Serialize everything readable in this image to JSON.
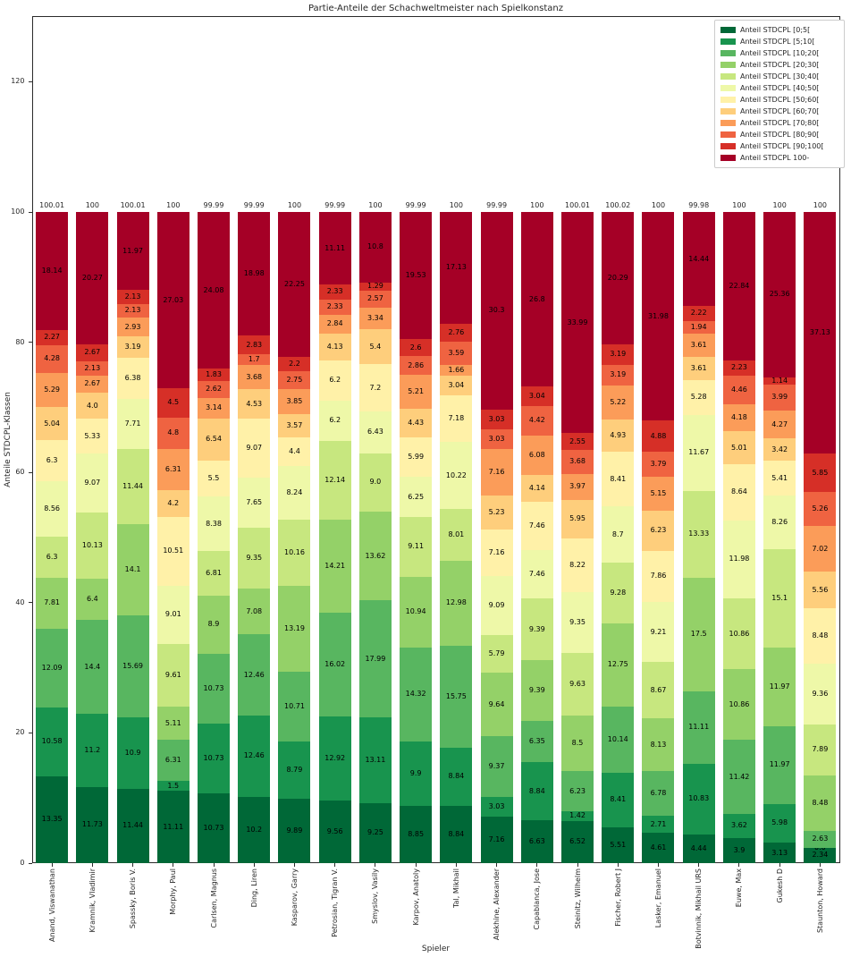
{
  "title": "Partie-Anteile der Schachweltmeister nach Spielkonstanz",
  "axes": {
    "xlabel": "Spieler",
    "ylabel": "Anteile STDCPL-Klassen",
    "ytick_labels": [
      "0",
      "20",
      "40",
      "60",
      "80",
      "100",
      "120"
    ]
  },
  "chart_data": {
    "type": "bar",
    "stacked": true,
    "grid": false,
    "legend_position": "upper right",
    "title": "Partie-Anteile der Schachweltmeister nach Spielkonstanz",
    "xlabel": "Spieler",
    "ylabel": "Anteile STDCPL-Klassen",
    "ylim": [
      0,
      130
    ],
    "yticks": [
      0,
      20,
      40,
      60,
      80,
      100,
      120
    ],
    "categories": [
      "Anand, Viswanathan",
      "Kramnik, Vladimir",
      "Spassky, Boris V.",
      "Morphy, Paul",
      "Carlsen, Magnus",
      "Ding, Liren",
      "Kasparov, Garry",
      "Petrosian, Tigran V.",
      "Smyslov, Vasily",
      "Karpov, Anatoly",
      "Tal, Mikhail",
      "Alekhine, Alexander",
      "Capablanca, Jose",
      "Steinitz, Wilhelm",
      "Fischer, Robert J",
      "Lasker, Emanuel",
      "Botvinnik, Mikhail URS",
      "Euwe, Max",
      "Gukesh D",
      "Staunton, Howard"
    ],
    "bar_totals": [
      "100.01",
      "100",
      "100.01",
      "100",
      "99.99",
      "99.99",
      "100",
      "99.99",
      "100",
      "99.99",
      "100",
      "99.99",
      "100",
      "100.01",
      "100.02",
      "100",
      "99.98",
      "100",
      "100",
      "100"
    ],
    "series": [
      {
        "name": "Anteil STDCPL [0;5[",
        "color": "#006837",
        "values": [
          "13.35",
          "11.73",
          "11.44",
          "11.11",
          "10.73",
          "10.2",
          "9.89",
          "9.56",
          "9.25",
          "8.85",
          "8.84",
          "7.16",
          "6.63",
          "6.52",
          "5.51",
          "4.61",
          "4.44",
          "3.9",
          "3.13",
          "2.34"
        ]
      },
      {
        "name": "Anteil STDCPL [5;10[",
        "color": "#18944e",
        "values": [
          "10.58",
          "11.2",
          "10.9",
          "1.5",
          "10.73",
          "12.46",
          "8.79",
          "12.92",
          "13.11",
          "9.9",
          "8.84",
          "3.03",
          "8.84",
          "1.42",
          "8.41",
          "2.71",
          "10.83",
          "3.62",
          "5.98",
          "0.0"
        ]
      },
      {
        "name": "Anteil STDCPL [10;20[",
        "color": "#58b660",
        "values": [
          "12.09",
          "14.4",
          "15.69",
          "6.31",
          "10.73",
          "12.46",
          "10.71",
          "16.02",
          "17.99",
          "14.32",
          "15.75",
          "9.37",
          "6.35",
          "6.23",
          "10.14",
          "6.78",
          "11.11",
          "11.42",
          "11.97",
          "2.63"
        ]
      },
      {
        "name": "Anteil STDCPL [20;30[",
        "color": "#94d168",
        "values": [
          "7.81",
          "6.4",
          "14.1",
          "5.11",
          "8.9",
          "7.08",
          "13.19",
          "14.21",
          "13.62",
          "10.94",
          "12.98",
          "9.64",
          "9.39",
          "8.5",
          "12.75",
          "8.13",
          "17.5",
          "10.86",
          "11.97",
          "8.48"
        ]
      },
      {
        "name": "Anteil STDCPL [30;40[",
        "color": "#c7e77f",
        "values": [
          "6.3",
          "10.13",
          "11.44",
          "9.61",
          "6.81",
          "9.35",
          "10.16",
          "12.14",
          "9.0",
          "9.11",
          "8.01",
          "5.79",
          "9.39",
          "9.63",
          "9.28",
          "8.67",
          "13.33",
          "10.86",
          "15.1",
          "7.89"
        ]
      },
      {
        "name": "Anteil STDCPL [40;50[",
        "color": "#eef8a8",
        "values": [
          "8.56",
          "9.07",
          "7.71",
          "9.01",
          "8.38",
          "7.65",
          "8.24",
          "6.2",
          "6.43",
          "6.25",
          "10.22",
          "9.09",
          "7.46",
          "9.35",
          "8.7",
          "9.21",
          "11.67",
          "11.98",
          "8.26",
          "9.36"
        ]
      },
      {
        "name": "Anteil STDCPL [50;60[",
        "color": "#fff1a8",
        "values": [
          "6.3",
          "5.33",
          "6.38",
          "10.51",
          "5.5",
          "9.07",
          "4.4",
          "6.2",
          "7.2",
          "5.99",
          "7.18",
          "7.16",
          "7.46",
          "8.22",
          "8.41",
          "7.86",
          "5.28",
          "8.64",
          "5.41",
          "8.48"
        ]
      },
      {
        "name": "Anteil STDCPL [60;70[",
        "color": "#fece7c",
        "values": [
          "5.04",
          "4.0",
          "3.19",
          "4.2",
          "6.54",
          "4.53",
          "3.57",
          "4.13",
          "5.4",
          "4.43",
          "3.04",
          "5.23",
          "4.14",
          "5.95",
          "4.93",
          "6.23",
          "3.61",
          "5.01",
          "3.42",
          "5.56"
        ]
      },
      {
        "name": "Anteil STDCPL [70;80[",
        "color": "#fb9c59",
        "values": [
          "5.29",
          "2.67",
          "2.93",
          "6.31",
          "3.14",
          "3.68",
          "3.85",
          "2.84",
          "3.34",
          "5.21",
          "1.66",
          "7.16",
          "6.08",
          "3.97",
          "5.22",
          "5.15",
          "3.61",
          "4.18",
          "4.27",
          "7.02"
        ]
      },
      {
        "name": "Anteil STDCPL [80;90[",
        "color": "#ef6341",
        "values": [
          "4.28",
          "2.13",
          "2.13",
          "4.8",
          "2.62",
          "1.7",
          "2.75",
          "2.33",
          "2.57",
          "2.86",
          "3.59",
          "3.03",
          "4.42",
          "3.68",
          "3.19",
          "3.79",
          "1.94",
          "4.46",
          "3.99",
          "5.26"
        ]
      },
      {
        "name": "Anteil STDCPL [90;100[",
        "color": "#d62f27",
        "values": [
          "2.27",
          "2.67",
          "2.13",
          "4.5",
          "1.83",
          "2.83",
          "2.2",
          "2.33",
          "1.29",
          "2.6",
          "2.76",
          "3.03",
          "3.04",
          "2.55",
          "3.19",
          "4.88",
          "2.22",
          "2.23",
          "1.14",
          "5.85"
        ]
      },
      {
        "name": "Anteil STDCPL 100-",
        "color": "#a50026",
        "values": [
          "18.14",
          "20.27",
          "11.97",
          "27.03",
          "24.08",
          "18.98",
          "22.25",
          "11.11",
          "10.8",
          "19.53",
          "17.13",
          "30.3",
          "26.8",
          "33.99",
          "20.29",
          "31.98",
          "14.44",
          "22.84",
          "25.36",
          "37.13"
        ]
      }
    ]
  }
}
